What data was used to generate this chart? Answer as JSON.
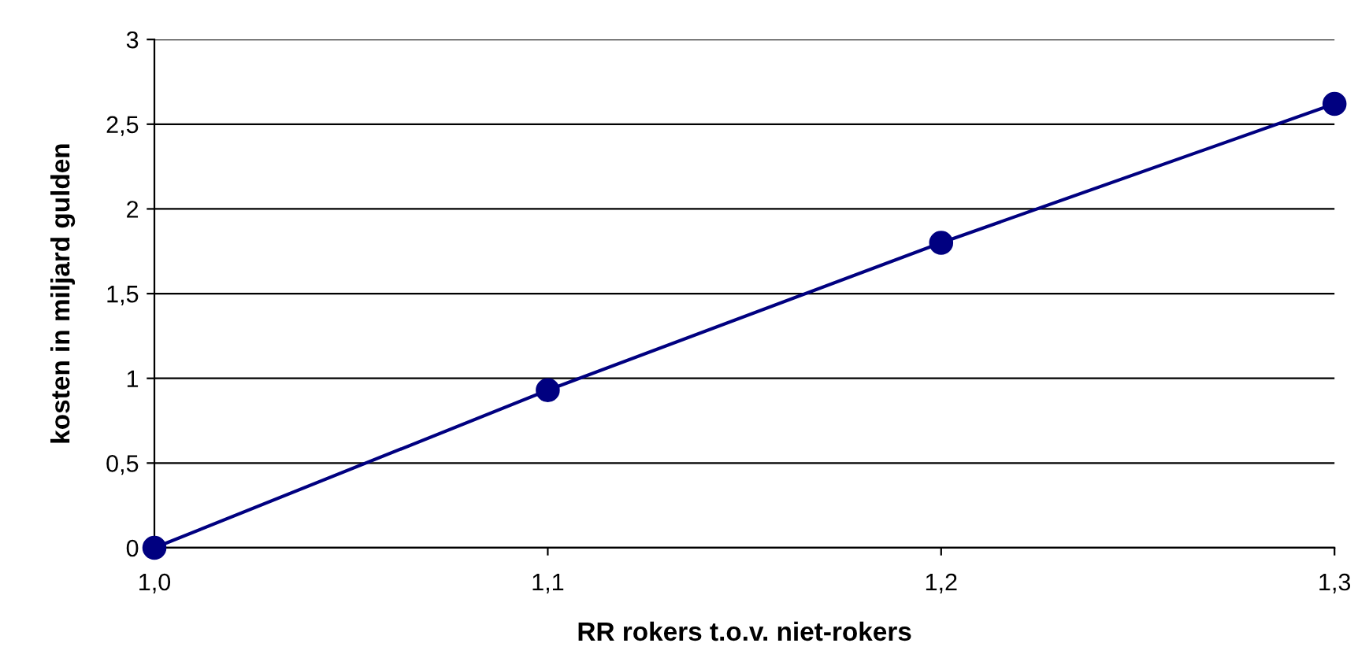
{
  "chart_data": {
    "type": "line",
    "xlabel": "RR rokers t.o.v. niet-rokers",
    "ylabel": "kosten in miljard gulden",
    "x": [
      1.0,
      1.1,
      1.2,
      1.3
    ],
    "series": [
      {
        "color": "#000080",
        "values": [
          0,
          0.93,
          1.8,
          2.62
        ]
      }
    ],
    "xlim": [
      1.0,
      1.3
    ],
    "xticks": [
      {
        "value": 1.0,
        "label": "1,0"
      },
      {
        "value": 1.1,
        "label": "1,1"
      },
      {
        "value": 1.2,
        "label": "1,2"
      },
      {
        "value": 1.3,
        "label": "1,3"
      }
    ],
    "ylim": [
      0,
      3
    ],
    "yticks": [
      0,
      {
        "value": 0.5,
        "label": "0,5"
      },
      1,
      {
        "value": 1.5,
        "label": "1,5"
      },
      2,
      {
        "value": 2.5,
        "label": "2,5"
      },
      3
    ],
    "grid": "y",
    "marker": "circle",
    "line_style": "solid"
  }
}
